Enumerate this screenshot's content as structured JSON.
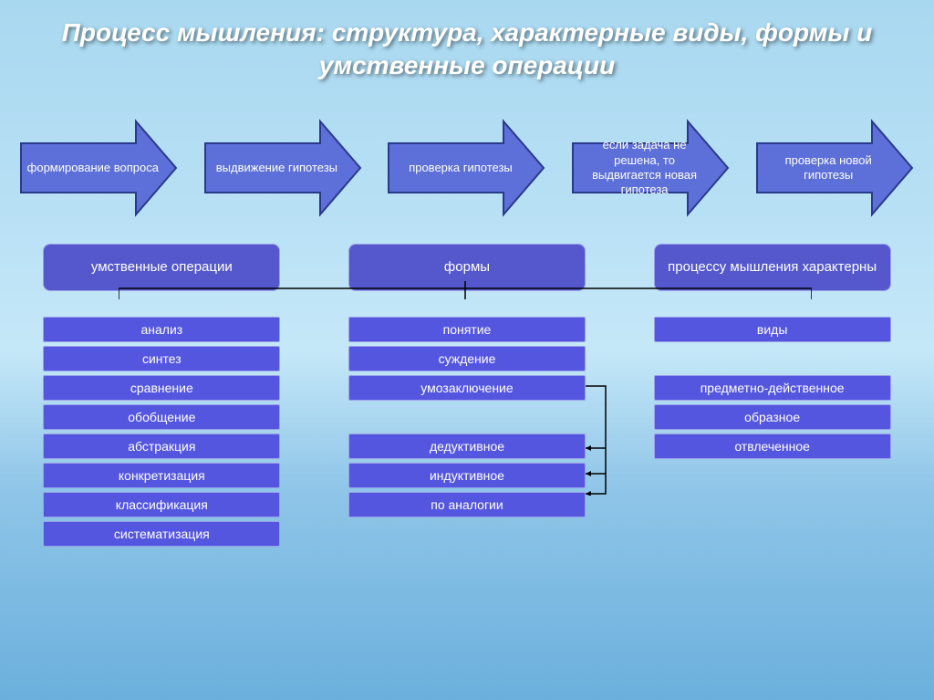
{
  "colors": {
    "arrow_fill": "#5d6fd8",
    "arrow_stroke": "#2a3a8a",
    "cat_fill": "#5558cc",
    "cat_border": "#9aa0e8",
    "item_fill": "#5456e0",
    "item_border": "#9aa0e8"
  },
  "title": "Процесс мышления: структура, характерные виды, формы и умственные операции",
  "arrows": [
    {
      "label": "формирование вопроса"
    },
    {
      "label": "выдвижение гипотезы"
    },
    {
      "label": "проверка гипотезы"
    },
    {
      "label": "если задача не решена, то выдвигается новая гипотеза"
    },
    {
      "label": "проверка новой гипотезы"
    }
  ],
  "categories": [
    {
      "label": "умственные операции"
    },
    {
      "label": "формы"
    },
    {
      "label": "процессу мышления характерны"
    }
  ],
  "column1": [
    {
      "label": "анализ"
    },
    {
      "label": "синтез"
    },
    {
      "label": "сравнение"
    },
    {
      "label": "обобщение"
    },
    {
      "label": "абстракция"
    },
    {
      "label": "конкретизация"
    },
    {
      "label": "классификация"
    },
    {
      "label": "систематизация"
    }
  ],
  "column2_top": [
    {
      "label": "понятие"
    },
    {
      "label": "суждение"
    },
    {
      "label": "умозаключение"
    }
  ],
  "column2_bottom": [
    {
      "label": "дедуктивное"
    },
    {
      "label": "индуктивное"
    },
    {
      "label": "по аналогии"
    }
  ],
  "column3_top": [
    {
      "label": "виды"
    }
  ],
  "column3_bottom": [
    {
      "label": "предметно-действенное"
    },
    {
      "label": "образное"
    },
    {
      "label": "отвлеченное"
    }
  ]
}
